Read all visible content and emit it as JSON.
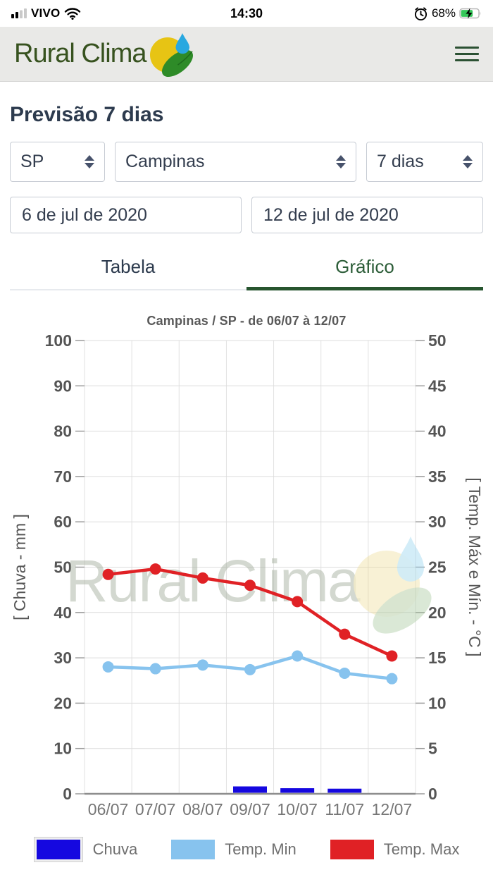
{
  "status_bar": {
    "carrier": "VIVO",
    "time": "14:30",
    "battery_percent": "68%"
  },
  "header": {
    "brand": "Rural Clima"
  },
  "page": {
    "title": "Previsão 7 dias"
  },
  "filters": {
    "state": "SP",
    "city": "Campinas",
    "period": "7 dias",
    "date_start": "6 de jul de 2020",
    "date_end": "12 de jul de 2020"
  },
  "tabs": {
    "table": "Tabela",
    "graph": "Gráfico"
  },
  "colors": {
    "brand_green": "#37521f",
    "tab_active_green": "#2c5d38",
    "rain_blue": "#1508e0",
    "temp_min_blue": "#87c3ee",
    "temp_max_red": "#e02125"
  },
  "chart_data": {
    "type": "bar",
    "title": "Campinas / SP - de 06/07 à 12/07",
    "categories": [
      "06/07",
      "07/07",
      "08/07",
      "09/07",
      "10/07",
      "11/07",
      "12/07"
    ],
    "series": [
      {
        "name": "Chuva",
        "type": "bar",
        "axis": "left",
        "color": "#1508e0",
        "values": [
          0,
          0,
          0,
          1.4,
          1.0,
          0.9,
          0
        ]
      },
      {
        "name": "Temp. Min",
        "type": "line",
        "axis": "right",
        "color": "#87c3ee",
        "values": [
          14.0,
          13.8,
          14.2,
          13.7,
          15.2,
          13.3,
          12.7
        ]
      },
      {
        "name": "Temp. Max",
        "type": "line",
        "axis": "right",
        "color": "#e02125",
        "values": [
          24.2,
          24.8,
          23.8,
          23.0,
          21.2,
          17.6,
          15.2
        ]
      }
    ],
    "left_axis": {
      "label": "[ Chuva - mm ]",
      "min": 0,
      "max": 100,
      "step": 10
    },
    "right_axis": {
      "label": "[ Temp. Máx e Mín. - °C ]",
      "min": 0,
      "max": 50,
      "step": 5
    },
    "legend_position": "bottom",
    "grid": true,
    "watermark": "Rural Clima"
  }
}
